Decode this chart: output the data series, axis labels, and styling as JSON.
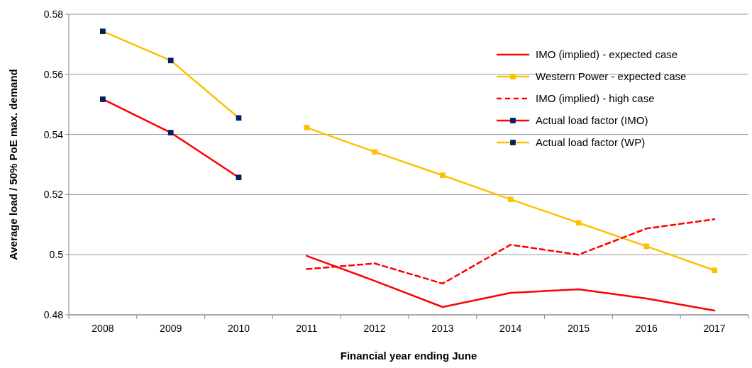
{
  "chart_data": {
    "type": "line",
    "xlabel": "Financial year ending June",
    "ylabel": "Average load / 50% PoE max. demand",
    "categories": [
      "2008",
      "2009",
      "2010",
      "2011",
      "2012",
      "2013",
      "2014",
      "2015",
      "2016",
      "2017"
    ],
    "ylim": [
      0.48,
      0.58
    ],
    "yticks": [
      0.48,
      0.5,
      0.52,
      0.54,
      0.56,
      0.58
    ],
    "grid": "y",
    "legend": "top right",
    "series": [
      {
        "name": "IMO (implied) - expected case",
        "color": "#ff0000",
        "line_style": "solid",
        "marker": "none",
        "values": [
          null,
          null,
          null,
          0.4996,
          0.4913,
          0.4826,
          0.4873,
          0.4885,
          0.4854,
          0.4814
        ]
      },
      {
        "name": "Western Power - expected case",
        "color": "#ffc000",
        "line_style": "solid",
        "marker": "square",
        "values": [
          null,
          null,
          null,
          0.5423,
          0.5342,
          0.5264,
          0.5184,
          0.5106,
          0.5028,
          0.4948
        ]
      },
      {
        "name": "IMO (implied) - high case",
        "color": "#ff0000",
        "line_style": "dashed",
        "marker": "none",
        "values": [
          null,
          null,
          null,
          0.4952,
          0.4971,
          0.4904,
          0.5033,
          0.5,
          0.5087,
          0.5118
        ]
      },
      {
        "name": "Actual load factor (IMO)",
        "color": "#ff0000",
        "colors": [
          "#002060",
          "#002060",
          "#002060",
          null,
          null,
          null,
          null,
          null,
          null,
          null
        ],
        "line_style": "solid",
        "marker": "square",
        "values": [
          0.5517,
          0.5406,
          0.5257,
          null,
          null,
          null,
          null,
          null,
          null,
          null
        ]
      },
      {
        "name": "Actual load factor (WP)",
        "color": "#ffc000",
        "colors": [
          "#002060",
          "#002060",
          "#002060",
          null,
          null,
          null,
          null,
          null,
          null,
          null
        ],
        "line_style": "solid",
        "marker": "square",
        "values": [
          0.5743,
          0.5646,
          0.5455,
          null,
          null,
          null,
          null,
          null,
          null,
          null
        ]
      }
    ]
  }
}
